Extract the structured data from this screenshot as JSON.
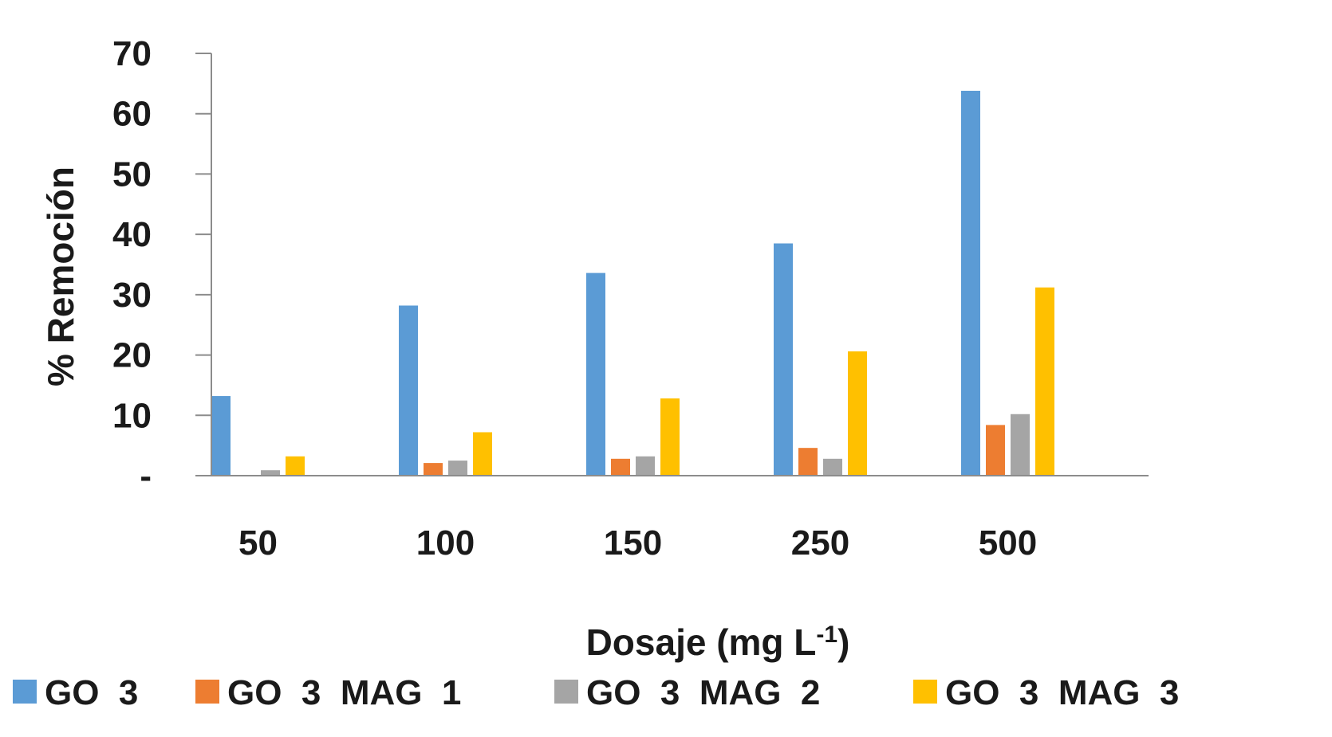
{
  "chart_data": {
    "type": "bar",
    "title": "",
    "xlabel": "Dosaje (mg L",
    "xlabel_superscript": "-1",
    "xlabel_suffix": ")",
    "ylabel": "% Remoción",
    "ylim": [
      0,
      70
    ],
    "yticks": [
      0,
      10,
      20,
      30,
      40,
      50,
      60,
      70
    ],
    "ytick_labels": [
      "-",
      "10",
      "20",
      "30",
      "40",
      "50",
      "60",
      "70"
    ],
    "grid": false,
    "legend_position": "bottom",
    "categories": [
      "50",
      "100",
      "150",
      "250",
      "500"
    ],
    "series": [
      {
        "name": "GO  3",
        "color": "#5B9BD5",
        "values": [
          13.2,
          28.2,
          33.6,
          38.5,
          63.8
        ]
      },
      {
        "name": "GO  3  MAG  1",
        "color": "#ED7D31",
        "values": [
          0,
          2.1,
          2.8,
          4.6,
          8.4
        ]
      },
      {
        "name": "GO  3  MAG  2",
        "color": "#A5A5A5",
        "values": [
          0.9,
          2.5,
          3.2,
          2.8,
          10.2
        ]
      },
      {
        "name": "GO  3  MAG  3",
        "color": "#FFC000",
        "values": [
          3.2,
          7.2,
          12.8,
          20.6,
          31.2
        ]
      }
    ]
  }
}
